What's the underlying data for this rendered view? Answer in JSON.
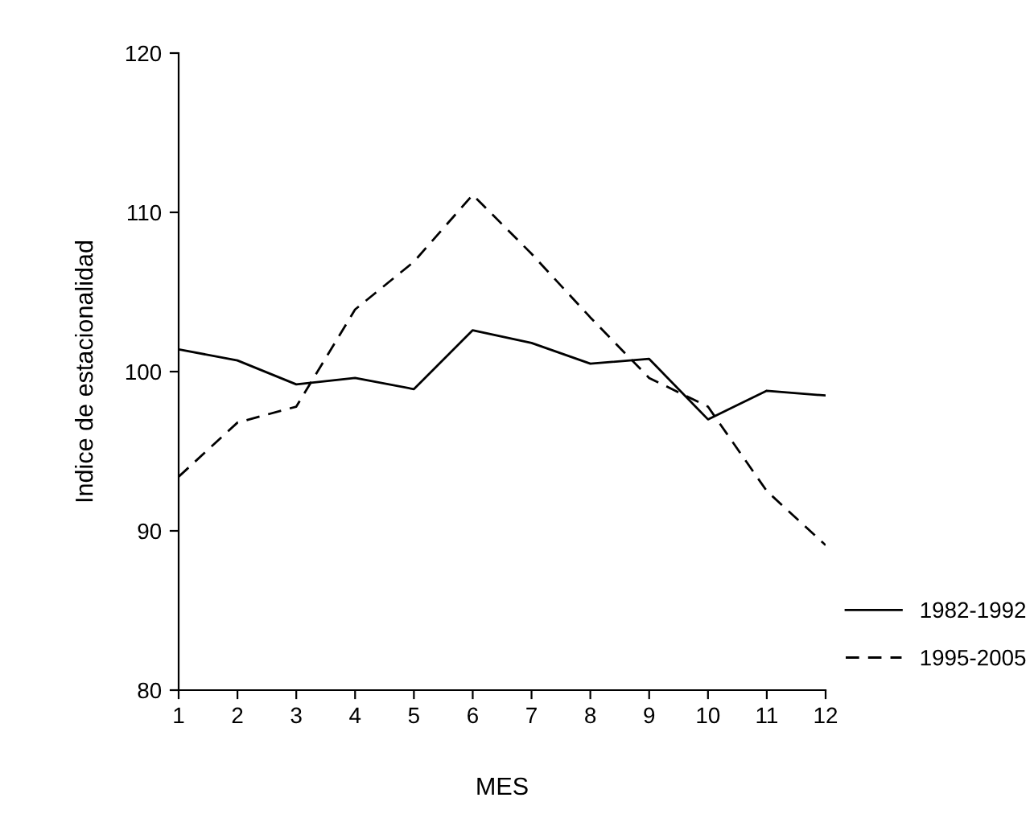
{
  "chart_data": {
    "type": "line",
    "xlabel": "MES",
    "ylabel": "Indice de estacionalidad",
    "x": [
      1,
      2,
      3,
      4,
      5,
      6,
      7,
      8,
      9,
      10,
      11,
      12
    ],
    "series": [
      {
        "name": "1982-1992",
        "color": "#000000",
        "line_style": "solid",
        "values": [
          101.4,
          100.7,
          99.2,
          99.6,
          98.9,
          102.6,
          101.8,
          100.5,
          100.8,
          97.0,
          98.8,
          98.5
        ]
      },
      {
        "name": "1995-2005",
        "color": "#000000",
        "line_style": "dashed",
        "values": [
          93.4,
          96.8,
          97.8,
          103.9,
          106.9,
          111.1,
          107.4,
          103.4,
          99.6,
          97.8,
          92.5,
          89.1
        ]
      }
    ],
    "xlim": [
      1,
      12
    ],
    "xticks": [
      1,
      2,
      3,
      4,
      5,
      6,
      7,
      8,
      9,
      10,
      11,
      12
    ],
    "ylim": [
      80,
      120
    ],
    "yticks": [
      80,
      90,
      100,
      110,
      120
    ],
    "grid": false,
    "legend": "bottom right",
    "marker": "none"
  }
}
